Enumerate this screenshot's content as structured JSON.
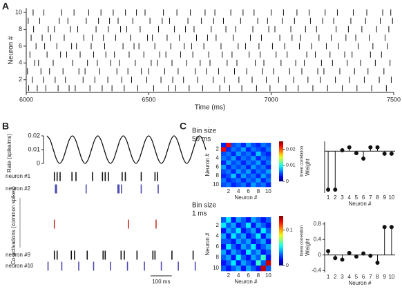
{
  "panel_labels": [
    "A",
    "B",
    "C"
  ],
  "chart_data": [
    {
      "type": "raster",
      "xlabel": "Time (ms)",
      "ylabel": "Neuron #",
      "color": "#111111",
      "xlim": [
        6000,
        7500
      ],
      "xticks": [
        6000,
        6500,
        7000,
        7500
      ],
      "ylim": [
        0.5,
        10.5
      ],
      "yticks": [
        2,
        4,
        6,
        8,
        10
      ],
      "spikes": [
        [
          6010,
          6045,
          6080,
          6130,
          6175,
          6200,
          6260,
          6310,
          6350,
          6400,
          6455,
          6520,
          6580,
          6610,
          6665,
          6720,
          6790,
          6830,
          6880,
          6940,
          6995,
          7060,
          7110,
          7170,
          7230,
          7290,
          7350,
          7410,
          7470
        ],
        [
          6025,
          6070,
          6118,
          6160,
          6232,
          6280,
          6333,
          6390,
          6430,
          6492,
          6550,
          6598,
          6642,
          6700,
          6763,
          6810,
          6868,
          6922,
          6980,
          7030,
          7092,
          7150,
          7200,
          7262,
          7320,
          7380,
          7441,
          7490
        ],
        [
          6005,
          6060,
          6095,
          6150,
          6215,
          6240,
          6300,
          6370,
          6415,
          6470,
          6500,
          6565,
          6620,
          6690,
          6735,
          6785,
          6850,
          6900,
          6965,
          7010,
          7075,
          7125,
          7190,
          7215,
          7280,
          7340,
          7395,
          7460
        ],
        [
          6035,
          6050,
          6110,
          6190,
          6250,
          6290,
          6345,
          6380,
          6445,
          6510,
          6535,
          6595,
          6655,
          6710,
          6750,
          6820,
          6860,
          6935,
          6970,
          7040,
          7100,
          7135,
          7205,
          7250,
          7310,
          7365,
          7425,
          7485
        ],
        [
          6015,
          6085,
          6140,
          6165,
          6220,
          6275,
          6325,
          6360,
          6420,
          6480,
          6545,
          6570,
          6630,
          6680,
          6745,
          6800,
          6840,
          6910,
          6955,
          7020,
          7065,
          7145,
          7180,
          7240,
          7300,
          7330,
          7405,
          7450
        ],
        [
          6040,
          6075,
          6125,
          6185,
          6205,
          6265,
          6320,
          6395,
          6440,
          6460,
          6525,
          6590,
          6645,
          6675,
          6725,
          6795,
          6865,
          6895,
          6950,
          7005,
          7055,
          7115,
          7165,
          7225,
          7275,
          7355,
          7415,
          7475
        ],
        [
          6020,
          6065,
          6100,
          6155,
          6235,
          6270,
          6315,
          6365,
          6425,
          6495,
          6515,
          6575,
          6625,
          6695,
          6740,
          6775,
          6845,
          6915,
          6960,
          7035,
          7085,
          7120,
          7195,
          7245,
          7305,
          7345,
          7400,
          7465
        ],
        [
          6030,
          6090,
          6115,
          6180,
          6210,
          6285,
          6335,
          6385,
          6410,
          6465,
          6540,
          6605,
          6650,
          6685,
          6755,
          6815,
          6855,
          6925,
          6990,
          7015,
          7080,
          7140,
          7185,
          7265,
          7315,
          7370,
          7430,
          7480
        ],
        [
          6008,
          6055,
          6135,
          6170,
          6245,
          6295,
          6340,
          6375,
          6435,
          6505,
          6555,
          6585,
          6660,
          6715,
          6765,
          6805,
          6875,
          6945,
          6985,
          7045,
          7095,
          7160,
          7210,
          7255,
          7325,
          7385,
          7445,
          7495
        ],
        [
          6028,
          6072,
          6145,
          6195,
          6255,
          6305,
          6355,
          6405,
          6450,
          6485,
          6560,
          6615,
          6670,
          6730,
          6770,
          6835,
          6885,
          6930,
          7000,
          7050,
          7105,
          7155,
          7220,
          7270,
          7335,
          7390,
          7455,
          7488
        ]
      ]
    },
    {
      "type": "line",
      "ylabel": "Rate (spike/ms)",
      "color": "#111111",
      "xlim": [
        0,
        750
      ],
      "ylim": [
        0,
        0.02
      ],
      "yticks": [
        0,
        0.01,
        0.02
      ],
      "x": [
        0,
        15,
        30,
        45,
        60,
        75,
        90,
        105,
        120,
        135,
        150,
        165,
        180,
        195,
        210,
        225,
        240,
        255,
        270,
        285,
        300,
        315,
        330,
        345,
        360,
        375,
        390,
        405,
        420,
        435,
        450,
        465,
        480,
        495,
        510,
        525,
        540,
        555,
        570,
        585,
        600,
        615,
        630,
        645,
        660,
        675,
        690,
        705,
        720,
        735,
        750
      ],
      "values": [
        0.02,
        0.017,
        0.01,
        0.003,
        0,
        0.003,
        0.01,
        0.017,
        0.02,
        0.017,
        0.01,
        0.003,
        0,
        0.003,
        0.01,
        0.017,
        0.02,
        0.017,
        0.01,
        0.003,
        0,
        0.003,
        0.01,
        0.017,
        0.02,
        0.017,
        0.01,
        0.003,
        0,
        0.003,
        0.01,
        0.017,
        0.02,
        0.017,
        0.01,
        0.003,
        0,
        0.003,
        0.01,
        0.017,
        0.02,
        0.017,
        0.01,
        0.003,
        0,
        0.003,
        0.01,
        0.017,
        0.02,
        0.017,
        0.01
      ]
    },
    {
      "type": "spike_rows",
      "xlim": [
        0,
        750
      ],
      "scalebar": {
        "value": 100,
        "label": "100 ms"
      },
      "rows": [
        {
          "name": "neuron #1",
          "color": "#111111",
          "values": [
            35,
            48,
            62,
            118,
            137,
            215,
            262,
            275,
            290,
            355,
            370,
            445,
            510,
            522
          ]
        },
        {
          "name": "neuron #2",
          "color": "#4b4bb0",
          "values": [
            40,
            45,
            185,
            335,
            340,
            352,
            445,
            525
          ]
        },
        {
          "name": "Co-activations (common spikes)",
          "color": "#c0392b",
          "values": [
            35,
            385,
            515
          ]
        },
        {
          "name": "neuron #9",
          "color": "#111111",
          "values": [
            35,
            48,
            115,
            130,
            190,
            265,
            275,
            350,
            365,
            425,
            500,
            510,
            590,
            690
          ]
        },
        {
          "name": "neuron #10",
          "color": "#4b4bb0",
          "values": [
            5,
            70,
            150,
            220,
            300,
            380,
            460,
            540,
            620,
            700
          ]
        }
      ]
    },
    {
      "type": "heatmap",
      "title": "Bin size",
      "subtitle": "50 ms",
      "xlabel": "Neuron #",
      "ylabel": "Neuron #",
      "colormap": "jet",
      "xlim": [
        0.5,
        10.5
      ],
      "ylim": [
        0.5,
        10.5
      ],
      "xticks": [
        2,
        4,
        6,
        8,
        10
      ],
      "yticks": [
        2,
        4,
        6,
        8,
        10
      ],
      "clim": [
        0,
        0.025
      ],
      "colorbar_ticks": [
        0,
        0.01,
        0.02
      ],
      "colorbar_label": "linear correlation",
      "matrix": [
        [
          0.004,
          0.022,
          0.005,
          0.006,
          0.004,
          0.007,
          0.005,
          0.004,
          0.006,
          0.005
        ],
        [
          0.022,
          0.004,
          0.006,
          0.005,
          0.007,
          0.004,
          0.006,
          0.005,
          0.004,
          0.006
        ],
        [
          0.005,
          0.006,
          0.004,
          0.007,
          0.005,
          0.006,
          0.004,
          0.008,
          0.005,
          0.004
        ],
        [
          0.006,
          0.005,
          0.007,
          0.004,
          0.006,
          0.005,
          0.007,
          0.004,
          0.006,
          0.005
        ],
        [
          0.004,
          0.007,
          0.005,
          0.006,
          0.004,
          0.006,
          0.005,
          0.007,
          0.004,
          0.006
        ],
        [
          0.007,
          0.004,
          0.006,
          0.005,
          0.006,
          0.004,
          0.007,
          0.005,
          0.006,
          0.004
        ],
        [
          0.005,
          0.006,
          0.004,
          0.007,
          0.005,
          0.007,
          0.004,
          0.006,
          0.005,
          0.007
        ],
        [
          0.004,
          0.005,
          0.008,
          0.004,
          0.007,
          0.005,
          0.006,
          0.004,
          0.007,
          0.005
        ],
        [
          0.006,
          0.004,
          0.005,
          0.006,
          0.004,
          0.006,
          0.005,
          0.007,
          0.004,
          0.006
        ],
        [
          0.005,
          0.006,
          0.004,
          0.005,
          0.006,
          0.004,
          0.007,
          0.005,
          0.006,
          0.004
        ]
      ]
    },
    {
      "type": "heatmap",
      "title": "Bin size",
      "subtitle": "1 ms",
      "xlabel": "Neuron #",
      "ylabel": "Neuron #",
      "colormap": "jet",
      "xlim": [
        0.5,
        10.5
      ],
      "ylim": [
        0.5,
        10.5
      ],
      "xticks": [
        2,
        4,
        6,
        8,
        10
      ],
      "yticks": [
        2,
        4,
        6,
        8,
        10
      ],
      "clim": [
        0,
        0.14
      ],
      "colorbar_ticks": [
        0,
        0.1
      ],
      "colorbar_label": "linear correlation",
      "matrix": [
        [
          0.03,
          0.05,
          0.02,
          0.04,
          0.03,
          0.02,
          0.04,
          0.03,
          0.02,
          0.03
        ],
        [
          0.05,
          0.03,
          0.04,
          0.02,
          0.03,
          0.05,
          0.02,
          0.04,
          0.03,
          0.02
        ],
        [
          0.02,
          0.04,
          0.03,
          0.05,
          0.02,
          0.03,
          0.04,
          0.02,
          0.05,
          0.03
        ],
        [
          0.04,
          0.02,
          0.05,
          0.03,
          0.04,
          0.02,
          0.03,
          0.05,
          0.02,
          0.04
        ],
        [
          0.03,
          0.03,
          0.02,
          0.04,
          0.03,
          0.04,
          0.02,
          0.03,
          0.04,
          0.02
        ],
        [
          0.02,
          0.05,
          0.03,
          0.02,
          0.04,
          0.03,
          0.05,
          0.02,
          0.03,
          0.04
        ],
        [
          0.04,
          0.02,
          0.04,
          0.03,
          0.02,
          0.05,
          0.03,
          0.04,
          0.02,
          0.03
        ],
        [
          0.03,
          0.04,
          0.02,
          0.05,
          0.03,
          0.02,
          0.04,
          0.03,
          0.06,
          0.02
        ],
        [
          0.02,
          0.03,
          0.05,
          0.02,
          0.04,
          0.03,
          0.02,
          0.06,
          0.03,
          0.13
        ],
        [
          0.03,
          0.02,
          0.03,
          0.04,
          0.02,
          0.04,
          0.03,
          0.02,
          0.13,
          0.03
        ]
      ]
    },
    {
      "type": "stem",
      "xlabel": "Neuron #",
      "ylabel": "Weight",
      "color": "#111111",
      "xlim": [
        0.5,
        10.5
      ],
      "ylim": [
        -0.85,
        0.2
      ],
      "xticks": [
        1,
        2,
        3,
        4,
        5,
        6,
        7,
        8,
        9,
        10
      ],
      "x": [
        1,
        2,
        3,
        4,
        5,
        6,
        7,
        8,
        9,
        10
      ],
      "values": [
        -0.78,
        -0.78,
        0.02,
        0.08,
        -0.04,
        -0.15,
        0.08,
        0.08,
        -0.05,
        -0.05
      ]
    },
    {
      "type": "stem",
      "xlabel": "Neuron #",
      "ylabel": "Weight",
      "color": "#111111",
      "xlim": [
        0.5,
        10.5
      ],
      "ylim": [
        -0.45,
        0.85
      ],
      "xticks": [
        1,
        2,
        3,
        4,
        5,
        6,
        7,
        8,
        9,
        10
      ],
      "yticks": [
        -0.4,
        0,
        0.4,
        0.8
      ],
      "x": [
        1,
        2,
        3,
        4,
        5,
        6,
        7,
        8,
        9,
        10
      ],
      "values": [
        0.1,
        -0.08,
        -0.12,
        0.05,
        -0.04,
        0.04,
        -0.02,
        -0.2,
        0.72,
        0.72
      ]
    }
  ]
}
